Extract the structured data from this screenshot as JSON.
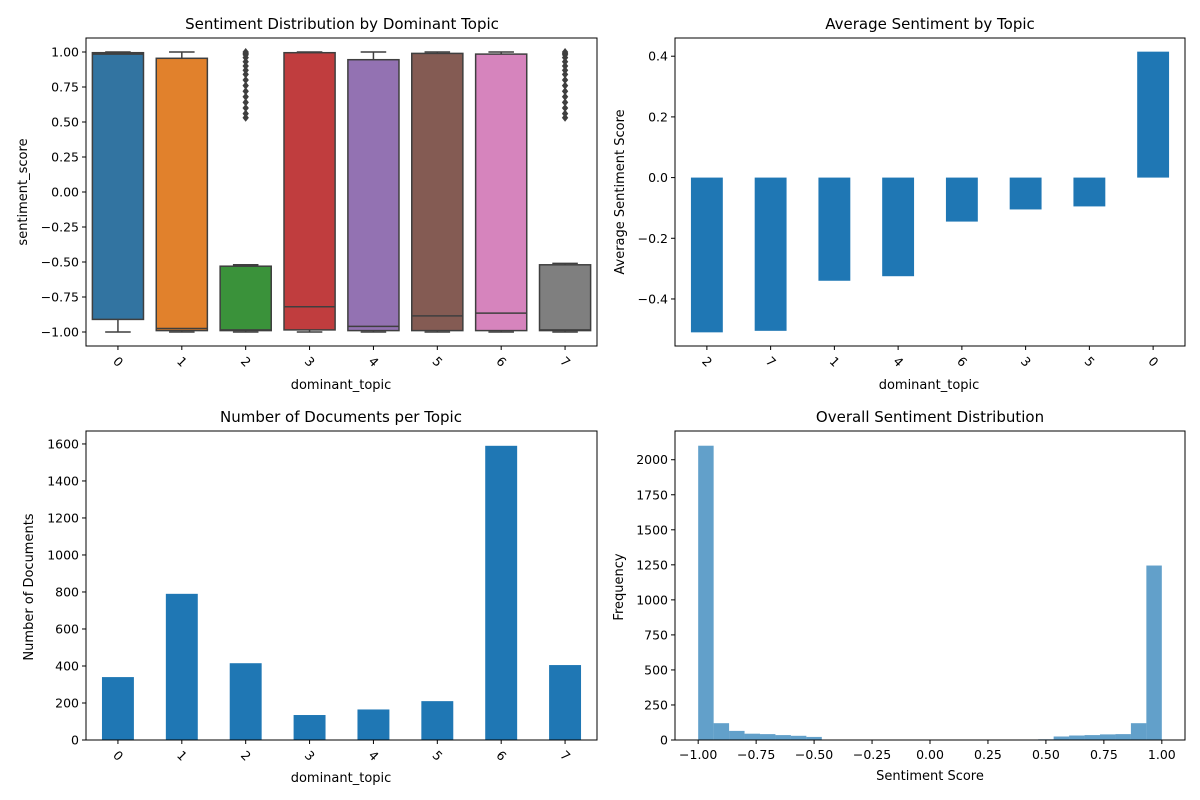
{
  "chart_data": [
    {
      "type": "box",
      "title": "Sentiment Distribution by Dominant Topic",
      "xlabel": "dominant_topic",
      "ylabel": "sentiment_score",
      "categories": [
        "0",
        "1",
        "2",
        "3",
        "4",
        "5",
        "6",
        "7"
      ],
      "colors": [
        "#3274a1",
        "#e1812c",
        "#3a923a",
        "#c03d3e",
        "#9372b2",
        "#845b53",
        "#d684bd",
        "#7f7f7f"
      ],
      "boxes": [
        {
          "whislo": -1.0,
          "q1": -0.91,
          "med": 0.985,
          "q3": 0.995,
          "whishi": 1.0,
          "fliers": []
        },
        {
          "whislo": -1.0,
          "q1": -0.99,
          "med": -0.975,
          "q3": 0.955,
          "whishi": 1.0,
          "fliers": []
        },
        {
          "whislo": -1.0,
          "q1": -0.99,
          "med": -0.985,
          "q3": -0.53,
          "whishi": -0.52,
          "fliers": [
            0.53,
            0.56,
            0.6,
            0.64,
            0.68,
            0.72,
            0.76,
            0.8,
            0.84,
            0.87,
            0.9,
            0.93,
            0.96,
            0.98,
            0.99,
            1.0
          ]
        },
        {
          "whislo": -1.0,
          "q1": -0.985,
          "med": -0.82,
          "q3": 0.995,
          "whishi": 1.0,
          "fliers": []
        },
        {
          "whislo": -1.0,
          "q1": -0.99,
          "med": -0.96,
          "q3": 0.945,
          "whishi": 1.0,
          "fliers": []
        },
        {
          "whislo": -1.0,
          "q1": -0.99,
          "med": -0.885,
          "q3": 0.99,
          "whishi": 1.0,
          "fliers": []
        },
        {
          "whislo": -1.0,
          "q1": -0.99,
          "med": -0.865,
          "q3": 0.985,
          "whishi": 1.0,
          "fliers": []
        },
        {
          "whislo": -1.0,
          "q1": -0.99,
          "med": -0.985,
          "q3": -0.52,
          "whishi": -0.51,
          "fliers": [
            0.53,
            0.56,
            0.6,
            0.64,
            0.68,
            0.72,
            0.76,
            0.8,
            0.84,
            0.87,
            0.9,
            0.93,
            0.96,
            0.98,
            0.99,
            1.0
          ]
        }
      ],
      "ylim": [
        -1.1,
        1.1
      ],
      "yticks": [
        -1.0,
        -0.75,
        -0.5,
        -0.25,
        0.0,
        0.25,
        0.5,
        0.75,
        1.0
      ],
      "ytick_labels": [
        "−1.00",
        "−0.75",
        "−0.50",
        "−0.25",
        "0.00",
        "0.25",
        "0.50",
        "0.75",
        "1.00"
      ],
      "grid": false
    },
    {
      "type": "bar",
      "title": "Average Sentiment by Topic",
      "xlabel": "dominant_topic",
      "ylabel": "Average Sentiment Score",
      "categories": [
        "2",
        "7",
        "1",
        "4",
        "6",
        "3",
        "5",
        "0"
      ],
      "values": [
        -0.51,
        -0.505,
        -0.34,
        -0.325,
        -0.145,
        -0.105,
        -0.095,
        0.415
      ],
      "color": "#1f77b4",
      "ylim": [
        -0.555,
        0.46
      ],
      "yticks": [
        -0.4,
        -0.2,
        0.0,
        0.2,
        0.4
      ],
      "ytick_labels": [
        "−0.4",
        "−0.2",
        "0.0",
        "0.2",
        "0.4"
      ],
      "grid": false
    },
    {
      "type": "bar",
      "title": "Number of Documents per Topic",
      "xlabel": "dominant_topic",
      "ylabel": "Number of Documents",
      "categories": [
        "0",
        "1",
        "2",
        "3",
        "4",
        "5",
        "6",
        "7"
      ],
      "values": [
        340,
        790,
        415,
        135,
        165,
        210,
        1590,
        405
      ],
      "color": "#1f77b4",
      "ylim": [
        0,
        1670
      ],
      "yticks": [
        0,
        200,
        400,
        600,
        800,
        1000,
        1200,
        1400,
        1600
      ],
      "ytick_labels": [
        "0",
        "200",
        "400",
        "600",
        "800",
        "1000",
        "1200",
        "1400",
        "1600"
      ],
      "grid": false
    },
    {
      "type": "histogram",
      "title": "Overall Sentiment Distribution",
      "xlabel": "Sentiment Score",
      "ylabel": "Frequency",
      "bin_edges": [
        -1.0,
        -0.9333,
        -0.8667,
        -0.8,
        -0.7333,
        -0.6667,
        -0.6,
        -0.5333,
        -0.4667,
        -0.4,
        -0.3333,
        -0.2667,
        -0.2,
        -0.1333,
        -0.0667,
        0.0,
        0.0667,
        0.1333,
        0.2,
        0.2667,
        0.3333,
        0.4,
        0.4667,
        0.5333,
        0.6,
        0.6667,
        0.7333,
        0.8,
        0.8667,
        0.9333,
        1.0
      ],
      "counts": [
        2100,
        120,
        65,
        45,
        42,
        35,
        30,
        22,
        0,
        0,
        0,
        0,
        0,
        0,
        0,
        0,
        0,
        0,
        0,
        0,
        0,
        0,
        5,
        25,
        32,
        35,
        40,
        42,
        120,
        1245
      ],
      "color": "#1f77b4",
      "opacity": 0.7,
      "xlim": [
        -1.1,
        1.1
      ],
      "xticks": [
        -1.0,
        -0.75,
        -0.5,
        -0.25,
        0.0,
        0.25,
        0.5,
        0.75,
        1.0
      ],
      "xtick_labels": [
        "−1.00",
        "−0.75",
        "−0.50",
        "−0.25",
        "0.00",
        "0.25",
        "0.50",
        "0.75",
        "1.00"
      ],
      "ylim": [
        0,
        2205
      ],
      "yticks": [
        0,
        250,
        500,
        750,
        1000,
        1250,
        1500,
        1750,
        2000
      ],
      "ytick_labels": [
        "0",
        "250",
        "500",
        "750",
        "1000",
        "1250",
        "1500",
        "1750",
        "2000"
      ],
      "grid": false
    }
  ]
}
